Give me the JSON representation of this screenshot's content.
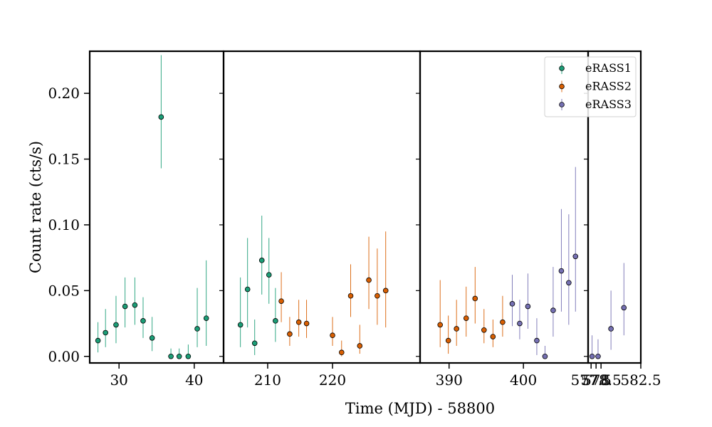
{
  "chart_data": {
    "type": "scatter",
    "layout": "broken-x-axis",
    "xlabel": "Time (MJD) - 58800",
    "ylabel": "Count rate (cts/s)",
    "ylim": [
      -0.005,
      0.232
    ],
    "yticks": [
      0.0,
      0.05,
      0.1,
      0.15,
      0.2
    ],
    "ytick_labels": [
      "0.00",
      "0.05",
      "0.10",
      "0.15",
      "0.20"
    ],
    "legend_position": "top-right",
    "grid": false,
    "panels": [
      {
        "xlim": [
          26.1,
          43.9
        ],
        "xticks": [
          30,
          40
        ],
        "xtick_labels": [
          "30",
          "40"
        ]
      },
      {
        "xlim": [
          203.2,
          233.5
        ],
        "xticks": [
          210,
          220
        ],
        "xtick_labels": [
          "210",
          "220"
        ]
      },
      {
        "xlim": [
          386.1,
          408.7
        ],
        "xticks": [
          390,
          400
        ],
        "xtick_labels": [
          "390",
          "400"
        ]
      },
      {
        "xlim": [
          577.2,
          582.5
        ],
        "xticks": [
          577.5,
          578,
          578.5,
          582.5
        ],
        "xtick_labels": [
          "577.5",
          "578",
          "578.5",
          "582.5"
        ]
      }
    ],
    "series": [
      {
        "name": "eRASS1",
        "color": "#1b9e77",
        "points": [
          {
            "x": 27.2,
            "y": 0.012,
            "err": [
              0.009,
              0.014
            ]
          },
          {
            "x": 28.2,
            "y": 0.018,
            "err": [
              0.011,
              0.018
            ]
          },
          {
            "x": 29.6,
            "y": 0.024,
            "err": [
              0.014,
              0.022
            ]
          },
          {
            "x": 30.8,
            "y": 0.038,
            "err": [
              0.016,
              0.022
            ]
          },
          {
            "x": 32.1,
            "y": 0.039,
            "err": [
              0.015,
              0.021
            ]
          },
          {
            "x": 33.2,
            "y": 0.027,
            "err": [
              0.013,
              0.018
            ]
          },
          {
            "x": 34.4,
            "y": 0.014,
            "err": [
              0.01,
              0.016
            ]
          },
          {
            "x": 35.6,
            "y": 0.182,
            "err": [
              0.039,
              0.047
            ]
          },
          {
            "x": 36.9,
            "y": 0.0,
            "err": [
              0.0,
              0.006
            ]
          },
          {
            "x": 38.0,
            "y": 0.0,
            "err": [
              0.0,
              0.006
            ]
          },
          {
            "x": 39.2,
            "y": 0.0,
            "err": [
              0.0,
              0.009
            ]
          },
          {
            "x": 40.4,
            "y": 0.021,
            "err": [
              0.014,
              0.031
            ]
          },
          {
            "x": 41.6,
            "y": 0.029,
            "err": [
              0.021,
              0.044
            ]
          },
          {
            "x": 205.8,
            "y": 0.024,
            "err": [
              0.017,
              0.036
            ]
          },
          {
            "x": 206.9,
            "y": 0.051,
            "err": [
              0.029,
              0.039
            ]
          },
          {
            "x": 208.0,
            "y": 0.01,
            "err": [
              0.009,
              0.018
            ]
          },
          {
            "x": 209.1,
            "y": 0.073,
            "err": [
              0.026,
              0.034
            ]
          },
          {
            "x": 210.2,
            "y": 0.062,
            "err": [
              0.022,
              0.028
            ]
          },
          {
            "x": 211.2,
            "y": 0.027,
            "err": [
              0.016,
              0.025
            ]
          }
        ]
      },
      {
        "name": "eRASS2",
        "color": "#d95f02",
        "points": [
          {
            "x": 212.1,
            "y": 0.042,
            "err": [
              0.016,
              0.022
            ]
          },
          {
            "x": 213.4,
            "y": 0.017,
            "err": [
              0.009,
              0.013
            ]
          },
          {
            "x": 214.8,
            "y": 0.026,
            "err": [
              0.011,
              0.017
            ]
          },
          {
            "x": 216.0,
            "y": 0.025,
            "err": [
              0.011,
              0.018
            ]
          },
          {
            "x": 220.0,
            "y": 0.016,
            "err": [
              0.008,
              0.014
            ]
          },
          {
            "x": 221.4,
            "y": 0.003,
            "err": [
              0.003,
              0.009
            ]
          },
          {
            "x": 222.8,
            "y": 0.046,
            "err": [
              0.016,
              0.024
            ]
          },
          {
            "x": 224.2,
            "y": 0.008,
            "err": [
              0.006,
              0.016
            ]
          },
          {
            "x": 225.6,
            "y": 0.058,
            "err": [
              0.022,
              0.033
            ]
          },
          {
            "x": 226.9,
            "y": 0.046,
            "err": [
              0.022,
              0.036
            ]
          },
          {
            "x": 228.2,
            "y": 0.05,
            "err": [
              0.028,
              0.045
            ]
          },
          {
            "x": 388.8,
            "y": 0.024,
            "err": [
              0.017,
              0.034
            ]
          },
          {
            "x": 389.9,
            "y": 0.012,
            "err": [
              0.01,
              0.019
            ]
          },
          {
            "x": 391.0,
            "y": 0.021,
            "err": [
              0.013,
              0.022
            ]
          },
          {
            "x": 392.3,
            "y": 0.029,
            "err": [
              0.014,
              0.024
            ]
          },
          {
            "x": 393.5,
            "y": 0.044,
            "err": [
              0.019,
              0.024
            ]
          },
          {
            "x": 394.7,
            "y": 0.02,
            "err": [
              0.01,
              0.016
            ]
          },
          {
            "x": 395.9,
            "y": 0.015,
            "err": [
              0.008,
              0.013
            ]
          },
          {
            "x": 397.2,
            "y": 0.026,
            "err": [
              0.011,
              0.02
            ]
          }
        ]
      },
      {
        "name": "eRASS3",
        "color": "#7570b3",
        "points": [
          {
            "x": 398.5,
            "y": 0.04,
            "err": [
              0.017,
              0.022
            ]
          },
          {
            "x": 399.5,
            "y": 0.025,
            "err": [
              0.012,
              0.018
            ]
          },
          {
            "x": 400.6,
            "y": 0.038,
            "err": [
              0.017,
              0.025
            ]
          },
          {
            "x": 401.8,
            "y": 0.012,
            "err": [
              0.011,
              0.017
            ]
          },
          {
            "x": 402.9,
            "y": 0.0,
            "err": [
              0.0,
              0.008
            ]
          },
          {
            "x": 404.0,
            "y": 0.035,
            "err": [
              0.02,
              0.033
            ]
          },
          {
            "x": 405.1,
            "y": 0.065,
            "err": [
              0.031,
              0.047
            ]
          },
          {
            "x": 406.1,
            "y": 0.056,
            "err": [
              0.032,
              0.052
            ]
          },
          {
            "x": 407.0,
            "y": 0.076,
            "err": [
              0.042,
              0.068
            ]
          },
          {
            "x": 577.6,
            "y": 0.0,
            "err": [
              0.0,
              0.016
            ]
          },
          {
            "x": 578.2,
            "y": 0.0,
            "err": [
              0.0,
              0.013
            ]
          },
          {
            "x": 579.5,
            "y": 0.021,
            "err": [
              0.016,
              0.029
            ]
          },
          {
            "x": 580.8,
            "y": 0.037,
            "err": [
              0.021,
              0.034
            ]
          }
        ]
      }
    ]
  }
}
